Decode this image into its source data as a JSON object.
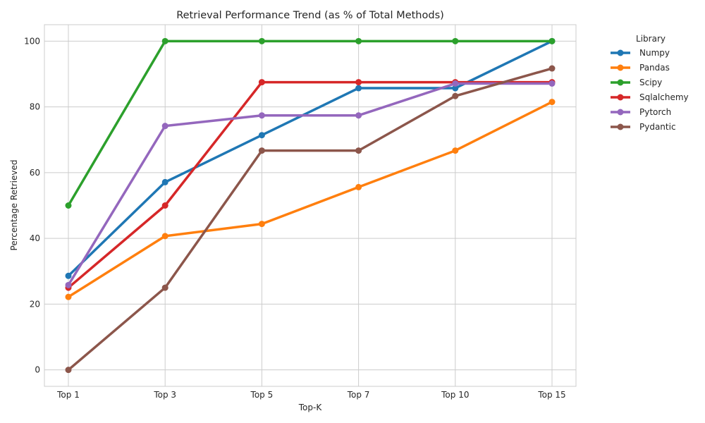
{
  "chart_data": {
    "type": "line",
    "title": "Retrieval Performance Trend (as % of Total Methods)",
    "xlabel": "Top-K",
    "ylabel": "Percentage Retrieved",
    "categories": [
      "Top 1",
      "Top 3",
      "Top 5",
      "Top 7",
      "Top 10",
      "Top 15"
    ],
    "ylim": [
      -5,
      105
    ],
    "yticks": [
      0,
      20,
      40,
      60,
      80,
      100
    ],
    "grid": true,
    "legend_title": "Library",
    "legend_position": "outside-right",
    "series": [
      {
        "name": "Numpy",
        "color": "#1f77b4",
        "values": [
          28.6,
          57.1,
          71.4,
          85.7,
          85.7,
          100.0
        ]
      },
      {
        "name": "Pandas",
        "color": "#ff7f0e",
        "values": [
          22.2,
          40.7,
          44.4,
          55.6,
          66.7,
          81.5
        ]
      },
      {
        "name": "Scipy",
        "color": "#2ca02c",
        "values": [
          50.0,
          100.0,
          100.0,
          100.0,
          100.0,
          100.0
        ]
      },
      {
        "name": "Sqlalchemy",
        "color": "#d62728",
        "values": [
          25.0,
          50.0,
          87.5,
          87.5,
          87.5,
          87.5
        ]
      },
      {
        "name": "Pytorch",
        "color": "#9467bd",
        "values": [
          25.8,
          74.2,
          77.4,
          77.4,
          87.1,
          87.1
        ]
      },
      {
        "name": "Pydantic",
        "color": "#8c564b",
        "values": [
          0.0,
          25.0,
          66.7,
          66.7,
          83.3,
          91.7
        ]
      }
    ]
  }
}
